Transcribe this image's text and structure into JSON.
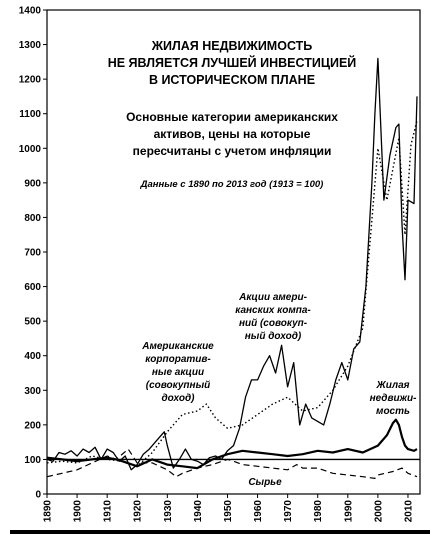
{
  "chart_data": {
    "type": "line",
    "title_lines": [
      "ЖИЛАЯ НЕДВИЖИМОСТЬ",
      "НЕ ЯВЛЯЕТСЯ ЛУЧШЕЙ ИНВЕСТИЦИЕЙ",
      "В ИСТОРИЧЕСКОМ ПЛАНЕ"
    ],
    "subtitle_lines": [
      "Основные категории американских",
      "активов, цены на которые",
      "пересчитаны с учетом инфляции"
    ],
    "note": "Данные с 1890 по 2013 год (1913 = 100)",
    "xlabel": "",
    "ylabel": "",
    "xlim": [
      1890,
      2014
    ],
    "ylim": [
      0,
      1400
    ],
    "yticks": [
      0,
      100,
      200,
      300,
      400,
      500,
      600,
      700,
      800,
      900,
      1000,
      1100,
      1200,
      1300,
      1400
    ],
    "xticks": [
      1890,
      1900,
      1910,
      1920,
      1930,
      1940,
      1950,
      1960,
      1970,
      1980,
      1990,
      2000,
      2010
    ],
    "reference_line": 100,
    "grid": false,
    "series": [
      {
        "style": "solid",
        "label_lines": [
          "Акции амери-",
          "канских компа-",
          "ний (совокуп-",
          "ный доход)"
        ],
        "x": [
          1890,
          1892,
          1894,
          1896,
          1898,
          1900,
          1902,
          1904,
          1906,
          1908,
          1910,
          1912,
          1914,
          1916,
          1918,
          1920,
          1922,
          1924,
          1926,
          1928,
          1929,
          1930,
          1932,
          1934,
          1936,
          1938,
          1940,
          1942,
          1944,
          1946,
          1948,
          1950,
          1952,
          1954,
          1956,
          1958,
          1960,
          1962,
          1964,
          1966,
          1968,
          1970,
          1972,
          1974,
          1976,
          1978,
          1980,
          1982,
          1984,
          1986,
          1988,
          1990,
          1992,
          1994,
          1996,
          1998,
          1999,
          2000,
          2002,
          2004,
          2006,
          2007,
          2008,
          2009,
          2010,
          2012,
          2013
        ],
        "y": [
          100,
          95,
          120,
          115,
          125,
          110,
          130,
          120,
          135,
          100,
          130,
          120,
          95,
          110,
          70,
          85,
          115,
          130,
          150,
          170,
          180,
          140,
          75,
          100,
          130,
          100,
          95,
          85,
          105,
          110,
          100,
          125,
          140,
          190,
          280,
          330,
          330,
          370,
          400,
          350,
          430,
          310,
          380,
          200,
          260,
          220,
          210,
          200,
          260,
          330,
          380,
          330,
          420,
          440,
          600,
          900,
          1100,
          1260,
          850,
          980,
          1060,
          1070,
          780,
          620,
          850,
          840,
          1150
        ]
      },
      {
        "style": "dotted",
        "label_lines": [
          "Американские",
          "корпоратив-",
          "ные акции",
          "(совокупный",
          "доход)"
        ],
        "x": [
          1890,
          1895,
          1900,
          1905,
          1910,
          1915,
          1920,
          1925,
          1930,
          1935,
          1940,
          1943,
          1946,
          1950,
          1955,
          1960,
          1965,
          1970,
          1975,
          1980,
          1985,
          1990,
          1995,
          2000,
          2003,
          2007,
          2009,
          2011,
          2013
        ],
        "y": [
          90,
          95,
          90,
          110,
          100,
          95,
          80,
          120,
          180,
          230,
          240,
          260,
          220,
          190,
          200,
          230,
          260,
          280,
          240,
          250,
          300,
          370,
          480,
          1000,
          850,
          1030,
          750,
          1010,
          1080
        ]
      },
      {
        "style": "solid-thick",
        "label_lines": [
          "Жилая",
          "недвижи-",
          "мость"
        ],
        "x": [
          1890,
          1895,
          1900,
          1905,
          1910,
          1913,
          1915,
          1920,
          1925,
          1930,
          1935,
          1940,
          1945,
          1950,
          1955,
          1960,
          1965,
          1970,
          1975,
          1980,
          1985,
          1990,
          1995,
          2000,
          2003,
          2005,
          2006,
          2007,
          2008,
          2009,
          2010,
          2012,
          2013
        ],
        "y": [
          105,
          100,
          95,
          100,
          105,
          100,
          95,
          80,
          100,
          85,
          80,
          75,
          100,
          115,
          125,
          120,
          115,
          110,
          115,
          125,
          120,
          130,
          120,
          140,
          170,
          205,
          215,
          200,
          165,
          140,
          130,
          125,
          130
        ]
      },
      {
        "style": "dashed",
        "label_lines": [
          "Сырье"
        ],
        "x": [
          1890,
          1895,
          1900,
          1905,
          1910,
          1913,
          1917,
          1920,
          1925,
          1930,
          1933,
          1935,
          1940,
          1945,
          1950,
          1952,
          1955,
          1960,
          1965,
          1970,
          1973,
          1975,
          1980,
          1985,
          1990,
          1995,
          1999,
          2000,
          2005,
          2008,
          2010,
          2013
        ],
        "y": [
          50,
          60,
          70,
          90,
          110,
          100,
          130,
          90,
          90,
          70,
          50,
          60,
          75,
          85,
          100,
          95,
          85,
          80,
          75,
          70,
          85,
          75,
          75,
          60,
          55,
          50,
          45,
          55,
          65,
          75,
          60,
          50
        ]
      }
    ]
  }
}
